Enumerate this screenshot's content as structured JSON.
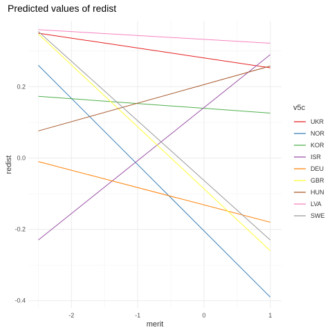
{
  "chart_data": {
    "type": "line",
    "title": "Predicted values of redist",
    "xlabel": "merit",
    "ylabel": "redist",
    "xlim": [
      -2.65,
      1.17
    ],
    "ylim": [
      -0.42,
      0.385
    ],
    "x_ticks": [
      -2,
      -1,
      0,
      1
    ],
    "x_tick_labels": [
      "-2",
      "-1",
      "0",
      "1"
    ],
    "y_ticks": [
      -0.4,
      -0.2,
      0.0,
      0.2
    ],
    "y_tick_labels": [
      "-0.4",
      "-0.2",
      "0.0",
      "0.2"
    ],
    "grid": true,
    "legend": {
      "title": "v5c",
      "position": "right"
    },
    "series": [
      {
        "name": "UKR",
        "color": "#e41a1c",
        "x": [
          -2.5,
          1
        ],
        "y": [
          0.35,
          0.253
        ]
      },
      {
        "name": "NOR",
        "color": "#377eb8",
        "x": [
          -2.5,
          1
        ],
        "y": [
          0.26,
          -0.39
        ]
      },
      {
        "name": "KOR",
        "color": "#4daf4a",
        "x": [
          -2.5,
          1
        ],
        "y": [
          0.173,
          0.126
        ]
      },
      {
        "name": "ISR",
        "color": "#984ea3",
        "x": [
          -2.5,
          1
        ],
        "y": [
          -0.23,
          0.29
        ]
      },
      {
        "name": "DEU",
        "color": "#ff7f00",
        "x": [
          -2.5,
          1
        ],
        "y": [
          -0.01,
          -0.18
        ]
      },
      {
        "name": "GBR",
        "color": "#ffff33",
        "x": [
          -2.5,
          1
        ],
        "y": [
          0.348,
          -0.26
        ]
      },
      {
        "name": "HUN",
        "color": "#a65628",
        "x": [
          -2.5,
          1
        ],
        "y": [
          0.076,
          0.258
        ]
      },
      {
        "name": "LVA",
        "color": "#f781bf",
        "x": [
          -2.5,
          1
        ],
        "y": [
          0.36,
          0.322
        ]
      },
      {
        "name": "SWE",
        "color": "#999999",
        "x": [
          -2.5,
          1
        ],
        "y": [
          0.355,
          -0.23
        ]
      }
    ]
  }
}
